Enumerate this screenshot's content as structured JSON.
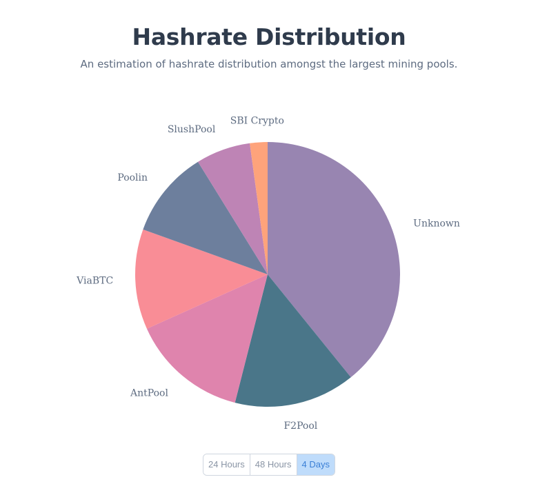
{
  "header": {
    "title": "Hashrate Distribution",
    "subtitle": "An estimation of hashrate distribution amongst the largest mining pools."
  },
  "range_selector": {
    "options": [
      {
        "label": "24 Hours",
        "active": false
      },
      {
        "label": "48 Hours",
        "active": false
      },
      {
        "label": "4 Days",
        "active": true
      }
    ]
  },
  "chart_data": {
    "type": "pie",
    "title": "Hashrate Distribution",
    "slices": [
      {
        "label": "Unknown",
        "value": 40.0,
        "color": "#9885b1"
      },
      {
        "label": "F2Pool",
        "value": 15.1,
        "color": "#4a7689"
      },
      {
        "label": "AntPool",
        "value": 14.6,
        "color": "#df84ad"
      },
      {
        "label": "ViaBTC",
        "value": 12.5,
        "color": "#f98d96"
      },
      {
        "label": "Poolin",
        "value": 10.9,
        "color": "#6d7f9d"
      },
      {
        "label": "SlushPool",
        "value": 6.8,
        "color": "#be84b5"
      },
      {
        "label": "SBI Crypto",
        "value": 2.2,
        "color": "#fea37b"
      }
    ],
    "start_angle": "top",
    "direction": "clockwise"
  }
}
